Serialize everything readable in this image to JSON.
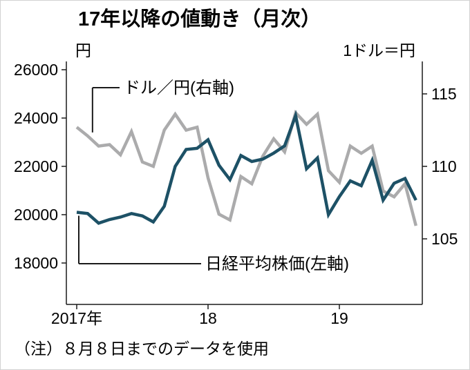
{
  "title": "17年以降の値動き（月次）",
  "note": "（注）８月８日までのデータを使用",
  "axes": {
    "left_unit": "円",
    "right_unit": "1ドル＝円"
  },
  "annotations": {
    "usdjpy": "ドル／円(右軸)",
    "nikkei": "日経平均株価(左軸)"
  },
  "colors": {
    "nikkei_line": "#1d5166",
    "usdjpy_line": "#ababac",
    "axis": "#1a1a1a"
  },
  "chart_data": {
    "type": "line",
    "title": "17年以降の値動き（月次）",
    "x": [
      "2017-01",
      "2017-02",
      "2017-03",
      "2017-04",
      "2017-05",
      "2017-06",
      "2017-07",
      "2017-08",
      "2017-09",
      "2017-10",
      "2017-11",
      "2017-12",
      "2018-01",
      "2018-02",
      "2018-03",
      "2018-04",
      "2018-05",
      "2018-06",
      "2018-07",
      "2018-08",
      "2018-09",
      "2018-10",
      "2018-11",
      "2018-12",
      "2019-01",
      "2019-02",
      "2019-03",
      "2019-04",
      "2019-05",
      "2019-06",
      "2019-07",
      "2019-08"
    ],
    "x_tick_labels": [
      "2017年",
      "18",
      "19"
    ],
    "x_tick_positions": [
      0,
      12,
      24
    ],
    "left_axis": {
      "unit": "円",
      "ticks": [
        26000,
        24000,
        22000,
        20000,
        18000
      ],
      "range": [
        16300,
        26300
      ]
    },
    "right_axis": {
      "unit": "1ドル＝円",
      "ticks": [
        115,
        110,
        105
      ],
      "range": [
        100.5,
        117.2
      ]
    },
    "grid": false,
    "legend_position": "inline-annotations",
    "series": [
      {
        "name": "日経平均株価(左軸)",
        "axis": "left",
        "color": "#1d5166",
        "values": [
          20100,
          20050,
          19650,
          19800,
          19900,
          20050,
          19950,
          19700,
          20350,
          22000,
          22700,
          22750,
          23100,
          22050,
          21450,
          22450,
          22200,
          22300,
          22550,
          22850,
          24100,
          21900,
          22350,
          20000,
          20750,
          21400,
          21200,
          22250,
          20600,
          21300,
          21500,
          20600
        ]
      },
      {
        "name": "ドル／円(右軸)",
        "axis": "right",
        "color": "#ababac",
        "values": [
          112.7,
          112.1,
          111.4,
          111.5,
          110.8,
          112.4,
          110.3,
          110.0,
          112.5,
          113.6,
          112.5,
          112.7,
          109.2,
          106.7,
          106.3,
          109.3,
          108.8,
          110.7,
          111.9,
          111.0,
          113.7,
          112.9,
          113.6,
          109.7,
          108.9,
          111.4,
          110.9,
          111.4,
          108.3,
          107.9,
          108.8,
          105.9
        ]
      }
    ]
  }
}
